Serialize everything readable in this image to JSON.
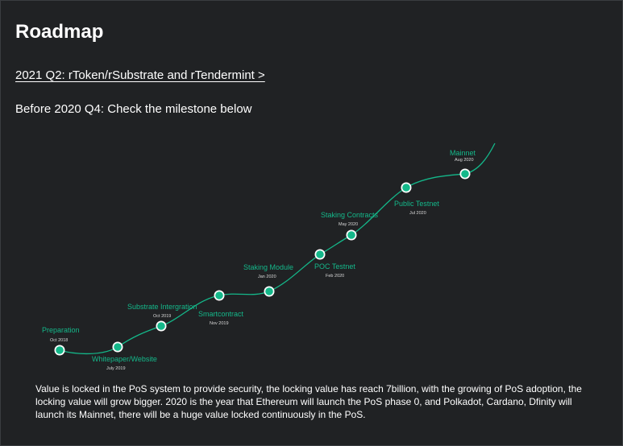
{
  "page": {
    "title": "Roadmap",
    "q2_link": "2021 Q2: rToken/rSubstrate and rTendermint >",
    "subheading": "Before 2020 Q4: Check the milestone below",
    "description": "Value is locked in the PoS system to provide security, the locking value has reach 7billion, with the growing of PoS adoption, the locking value will grow bigger. 2020 is the year that Ethereum will launch the PoS phase 0, and Polkadot, Cardano, Dfinity will launch its Mainnet, there will be a huge value locked continuously in the PoS."
  },
  "milestones": [
    {
      "name": "Preparation",
      "date": "Oct 2018",
      "label_position": "above"
    },
    {
      "name": "Whitepaper/Website",
      "date": "July 2019",
      "label_position": "below"
    },
    {
      "name": "Substrate Intergration",
      "date": "Oct 2019",
      "label_position": "above"
    },
    {
      "name": "Smartcontract",
      "date": "Nov 2019",
      "label_position": "below"
    },
    {
      "name": "Staking Module",
      "date": "Jan 2020",
      "label_position": "above"
    },
    {
      "name": "POC Testnet",
      "date": "Feb 2020",
      "label_position": "below"
    },
    {
      "name": "Staking Contracts",
      "date": "May 2020",
      "label_position": "above"
    },
    {
      "name": "Public Testnet",
      "date": "Jul 2020",
      "label_position": "below"
    },
    {
      "name": "Mainnet",
      "date": "Aug 2020",
      "label_position": "above"
    }
  ],
  "colors": {
    "accent": "#14b88a",
    "background": "#202224",
    "text": "#ffffff"
  }
}
